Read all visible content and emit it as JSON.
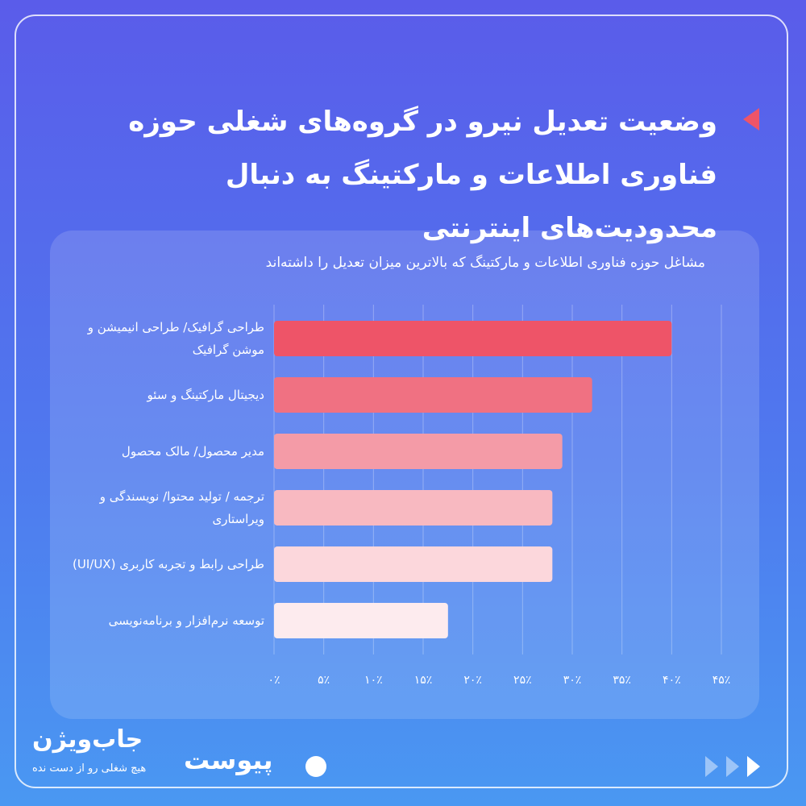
{
  "chart_data": {
    "type": "bar",
    "orientation": "horizontal",
    "title": "وضعیت تعدیل نیرو در گروه‌های شغلی حوزه فناوری اطلاعات و مارکتینگ به دنبال محدودیت‌های اینترنتی",
    "subtitle": "مشاغل حوزه فناوری اطلاعات و مارکتینگ که بالاترین میزان تعدیل را داشته‌اند",
    "categories": [
      "طراحی گرافیک/ طراحی انیمیشن و موشن گرافیک",
      "دیجیتال مارکتینگ و سئو",
      "مدیر محصول/ مالک محصول",
      "ترجمه / تولید محتوا/ نویسندگی و ویراستاری",
      "طراحی رابط و تجربه کاربری (UI/UX)",
      "توسعه نرم‌افزار و برنامه‌نویسی"
    ],
    "values": [
      40,
      32,
      29,
      28,
      28,
      17.5
    ],
    "colors": [
      "#ee5468",
      "#f07182",
      "#f49ba7",
      "#f8b9c1",
      "#fcd7dc",
      "#fdebee"
    ],
    "xlim": [
      0,
      45
    ],
    "xticks": [
      {
        "value": 0,
        "label": "۰٪"
      },
      {
        "value": 5,
        "label": "۵٪"
      },
      {
        "value": 10,
        "label": "۱۰٪"
      },
      {
        "value": 15,
        "label": "۱۵٪"
      },
      {
        "value": 20,
        "label": "۲۰٪"
      },
      {
        "value": 25,
        "label": "۲۵٪"
      },
      {
        "value": 30,
        "label": "۳۰٪"
      },
      {
        "value": 35,
        "label": "۳۵٪"
      },
      {
        "value": 40,
        "label": "۴۰٪"
      },
      {
        "value": 45,
        "label": "۴۵٪"
      }
    ],
    "grid": true
  },
  "branding": {
    "jobvision": "جاب‌ویژن",
    "tagline": "هیچ شغلی رو از دست نده",
    "peivast": "پیوست"
  }
}
